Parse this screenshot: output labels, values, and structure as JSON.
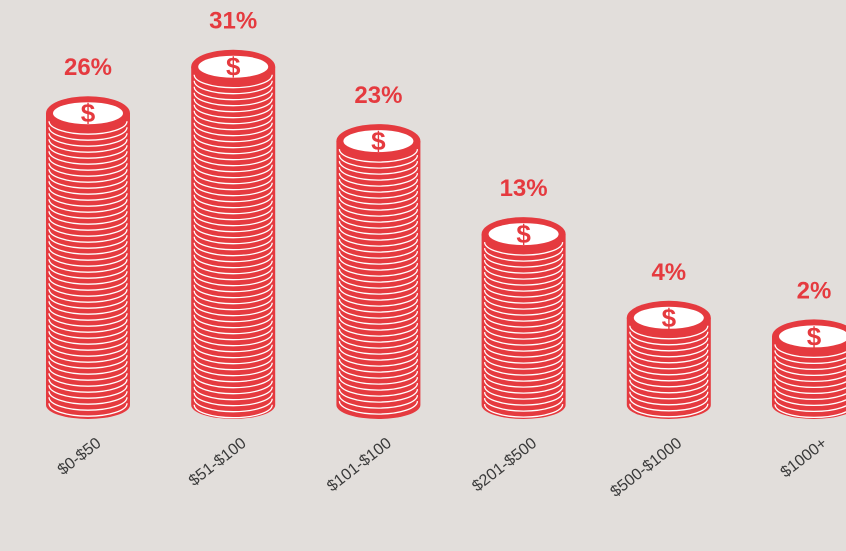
{
  "chart_data": {
    "type": "coin-stack",
    "categories": [
      "$0-$50",
      "$51-$100",
      "$101-$100",
      "$201-$500",
      "$500-$1000",
      "$1000+"
    ],
    "values": [
      26,
      31,
      23,
      13,
      4,
      2
    ],
    "value_labels": [
      "26%",
      "31%",
      "23%",
      "13%",
      "4%",
      "2%"
    ],
    "icon_text": "$",
    "color": "#e53a3f"
  }
}
